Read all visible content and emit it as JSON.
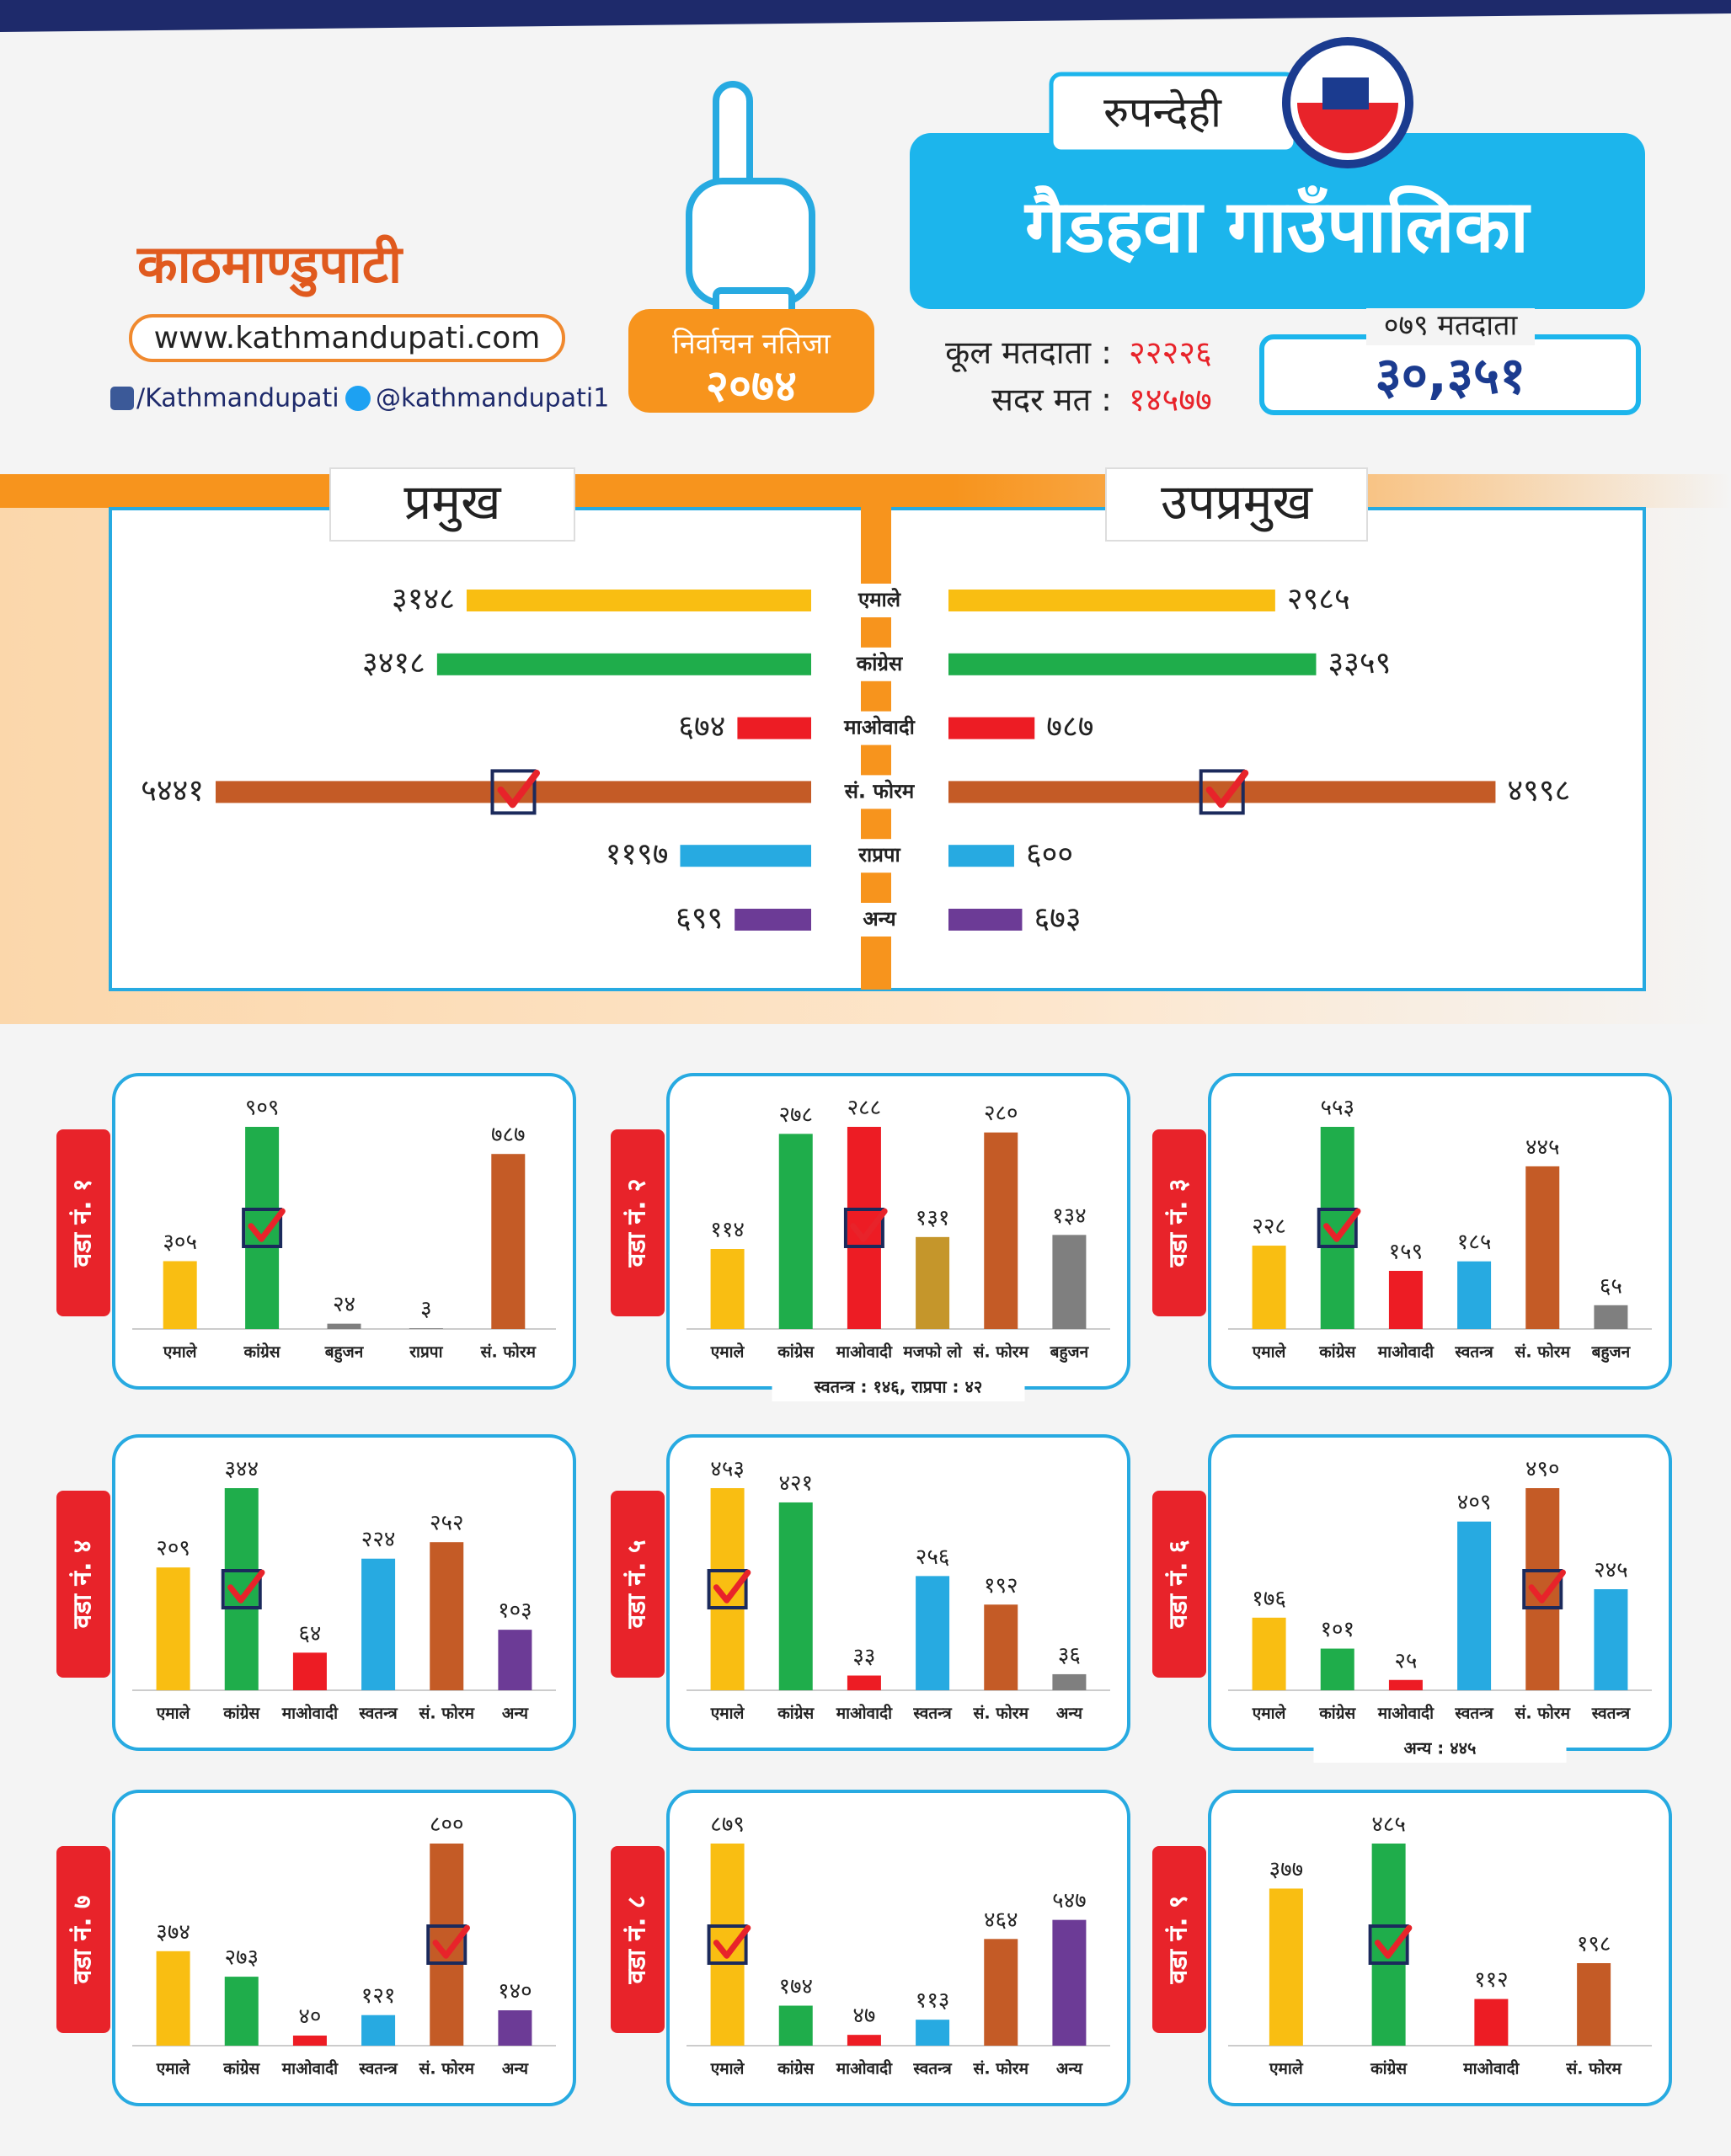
{
  "header": {
    "logo": "काठमाण्डुपाटी",
    "website": "www.kathmandupati.com",
    "facebook": "/Kathmandupati",
    "twitter": "@kathmandupati1",
    "badge_title": "निर्वाचन नतिजा",
    "badge_year": "२०७४",
    "district": "रुपन्देही",
    "title": "गैडहवा गाउँपालिका",
    "total_voters_label": "कूल मतदाता :",
    "total_voters": "२२२२६",
    "valid_votes_label": "सदर मत :",
    "valid_votes": "१४५७७",
    "voters_079_label": "०७९ मतदाता",
    "voters_079": "३०,३५१"
  },
  "chart_data": [
    {
      "type": "butterfly",
      "categories": [
        "एमाले",
        "कांग्रेस",
        "माओवादी",
        "सं. फोरम",
        "राप्रपा",
        "अन्य"
      ],
      "colors": [
        "#f9be12",
        "#1fad4b",
        "#ed1c24",
        "#c45b26",
        "#27aae1",
        "#6c3b96"
      ],
      "checked": 3,
      "series": [
        {
          "name": "प्रमुख",
          "values": [
            3148,
            3418,
            674,
            5441,
            1197,
            699
          ],
          "value_labels": [
            "३१४८",
            "३४१८",
            "६७४",
            "५४४१",
            "११९७",
            "६९९"
          ]
        },
        {
          "name": "उपप्रमुख",
          "values": [
            2985,
            3359,
            787,
            4998,
            600,
            673
          ],
          "value_labels": [
            "२९८५",
            "३३५९",
            "७८७",
            "४९९८",
            "६००",
            "६७३"
          ]
        }
      ]
    },
    {
      "type": "bar",
      "title": "वडा नं. १",
      "categories": [
        "एमाले",
        "कांग्रेस",
        "बहुजन",
        "राप्रपा",
        "सं. फोरम"
      ],
      "values": [
        305,
        909,
        24,
        3,
        787
      ],
      "value_labels": [
        "३०५",
        "९०९",
        "२४",
        "३",
        "७८७"
      ],
      "colors": [
        "#f9be12",
        "#1fad4b",
        "#7f7f7f",
        "#7f7f7f",
        "#c45b26"
      ],
      "checked": 1
    },
    {
      "type": "bar",
      "title": "वडा नं. २",
      "categories": [
        "एमाले",
        "कांग्रेस",
        "माओवादी",
        "मजफो लो",
        "सं. फोरम",
        "बहुजन"
      ],
      "values": [
        114,
        278,
        288,
        131,
        280,
        134
      ],
      "value_labels": [
        "११४",
        "२७८",
        "२८८",
        "१३१",
        "२८०",
        "१३४"
      ],
      "colors": [
        "#f9be12",
        "#1fad4b",
        "#ed1c24",
        "#c5962b",
        "#c45b26",
        "#7f7f7f"
      ],
      "checked": 2,
      "note": "स्वतन्त्र : १४६, राप्रपा : ४२"
    },
    {
      "type": "bar",
      "title": "वडा नं. ३",
      "categories": [
        "एमाले",
        "कांग्रेस",
        "माओवादी",
        "स्वतन्त्र",
        "सं. फोरम",
        "बहुजन"
      ],
      "values": [
        228,
        553,
        159,
        185,
        445,
        65
      ],
      "value_labels": [
        "२२८",
        "५५३",
        "१५९",
        "१८५",
        "४४५",
        "६५"
      ],
      "colors": [
        "#f9be12",
        "#1fad4b",
        "#ed1c24",
        "#27aae1",
        "#c45b26",
        "#7f7f7f"
      ],
      "checked": 1
    },
    {
      "type": "bar",
      "title": "वडा नं. ४",
      "categories": [
        "एमाले",
        "कांग्रेस",
        "माओवादी",
        "स्वतन्त्र",
        "सं. फोरम",
        "अन्य"
      ],
      "values": [
        209,
        344,
        64,
        224,
        252,
        103
      ],
      "value_labels": [
        "२०९",
        "३४४",
        "६४",
        "२२४",
        "२५२",
        "१०३"
      ],
      "colors": [
        "#f9be12",
        "#1fad4b",
        "#ed1c24",
        "#27aae1",
        "#c45b26",
        "#6c3b96"
      ],
      "checked": 1
    },
    {
      "type": "bar",
      "title": "वडा नं. ५",
      "categories": [
        "एमाले",
        "कांग्रेस",
        "माओवादी",
        "स्वतन्त्र",
        "सं. फोरम",
        "अन्य"
      ],
      "values": [
        453,
        421,
        33,
        256,
        192,
        36
      ],
      "value_labels": [
        "४५३",
        "४२१",
        "३३",
        "२५६",
        "१९२",
        "३६"
      ],
      "colors": [
        "#f9be12",
        "#1fad4b",
        "#ed1c24",
        "#27aae1",
        "#c45b26",
        "#7f7f7f"
      ],
      "checked": 0
    },
    {
      "type": "bar",
      "title": "वडा नं. ६",
      "categories": [
        "एमाले",
        "कांग्रेस",
        "माओवादी",
        "स्वतन्त्र",
        "सं. फोरम",
        "स्वतन्त्र"
      ],
      "values": [
        176,
        101,
        25,
        409,
        490,
        245
      ],
      "value_labels": [
        "१७६",
        "१०१",
        "२५",
        "४०९",
        "४९०",
        "२४५"
      ],
      "colors": [
        "#f9be12",
        "#1fad4b",
        "#ed1c24",
        "#27aae1",
        "#c45b26",
        "#27aae1"
      ],
      "checked": 4,
      "note": "अन्य : ४४५"
    },
    {
      "type": "bar",
      "title": "वडा नं. ७",
      "categories": [
        "एमाले",
        "कांग्रेस",
        "माओवादी",
        "स्वतन्त्र",
        "सं. फोरम",
        "अन्य"
      ],
      "values": [
        374,
        273,
        40,
        121,
        800,
        140
      ],
      "value_labels": [
        "३७४",
        "२७३",
        "४०",
        "१२१",
        "८००",
        "१४०"
      ],
      "colors": [
        "#f9be12",
        "#1fad4b",
        "#ed1c24",
        "#27aae1",
        "#c45b26",
        "#6c3b96"
      ],
      "checked": 4
    },
    {
      "type": "bar",
      "title": "वडा नं. ८",
      "categories": [
        "एमाले",
        "कांग्रेस",
        "माओवादी",
        "स्वतन्त्र",
        "सं. फोरम",
        "अन्य"
      ],
      "values": [
        879,
        174,
        47,
        113,
        464,
        547
      ],
      "value_labels": [
        "८७९",
        "१७४",
        "४७",
        "११३",
        "४६४",
        "५४७"
      ],
      "colors": [
        "#f9be12",
        "#1fad4b",
        "#ed1c24",
        "#27aae1",
        "#c45b26",
        "#6c3b96"
      ],
      "checked": 0
    },
    {
      "type": "bar",
      "title": "वडा नं. ९",
      "categories": [
        "एमाले",
        "कांग्रेस",
        "माओवादी",
        "सं. फोरम"
      ],
      "values": [
        377,
        485,
        112,
        198
      ],
      "value_labels": [
        "३७७",
        "४८५",
        "११२",
        "१९८"
      ],
      "colors": [
        "#f9be12",
        "#1fad4b",
        "#ed1c24",
        "#c45b26"
      ],
      "checked": 1
    }
  ]
}
